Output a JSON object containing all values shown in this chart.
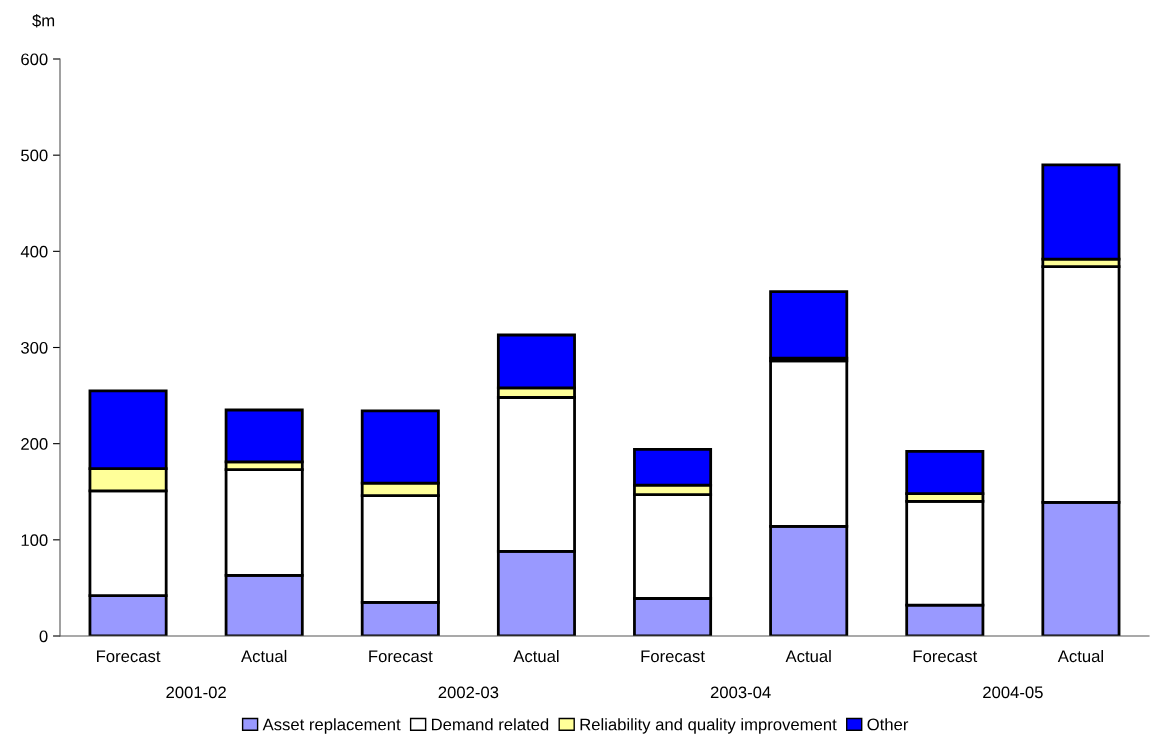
{
  "chart_data": {
    "type": "bar",
    "stacked": true,
    "ylabel": "$m",
    "categories": [
      "Forecast",
      "Actual",
      "Forecast",
      "Actual",
      "Forecast",
      "Actual",
      "Forecast",
      "Actual"
    ],
    "series": [
      {
        "name": "Asset replacement",
        "color": "#9999ff",
        "values": [
          42,
          63,
          35,
          88,
          39,
          114,
          32,
          139
        ]
      },
      {
        "name": "Demand related",
        "color": "#ffffff",
        "values": [
          109,
          110,
          111,
          160,
          108,
          172,
          108,
          245
        ]
      },
      {
        "name": "Reliability and quality improvement",
        "color": "#ffff99",
        "values": [
          23,
          8,
          13,
          10,
          10,
          3,
          8,
          8
        ]
      },
      {
        "name": "Other",
        "color": "#0000ff",
        "values": [
          81,
          54,
          75,
          55,
          37,
          69,
          44,
          98
        ]
      }
    ],
    "annotations": [
      "2001-02",
      "2002-03",
      "2003-04",
      "2004-05"
    ],
    "ylim": [
      0,
      600
    ],
    "yticks": [
      0,
      100,
      200,
      300,
      400,
      500,
      600
    ],
    "grid": false,
    "legend": "bottom"
  }
}
